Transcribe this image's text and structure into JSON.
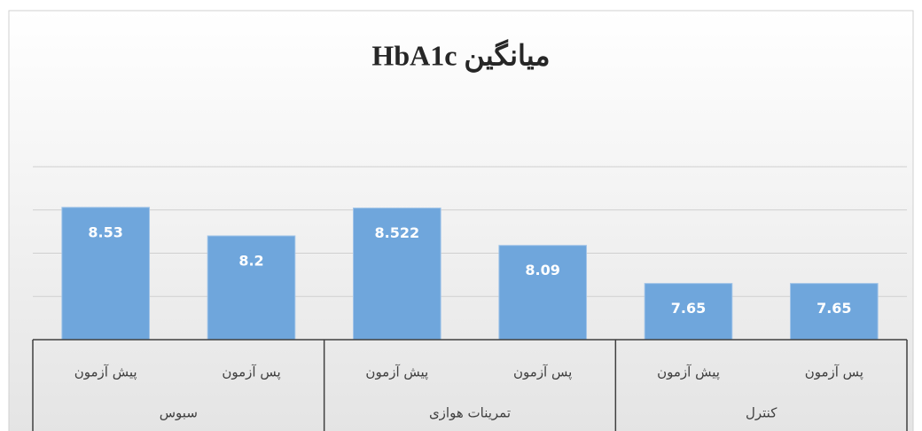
{
  "chart_data": {
    "type": "bar",
    "title": "میانگین HbA1c",
    "categories": [
      "پیش آزمون",
      "پس آزمون",
      "پیش آزمون",
      "پس آزمون",
      "پیش آزمون",
      "پس آزمون"
    ],
    "groups": [
      "سبوس",
      "تمرینات هوازی",
      "کنترل"
    ],
    "values": [
      8.53,
      8.2,
      8.522,
      8.09,
      7.65,
      7.65
    ],
    "color": "#6fa6dc",
    "ylim": [
      7,
      9
    ],
    "yticks": [
      7,
      7.5,
      8,
      8.5,
      9
    ],
    "grid": true
  }
}
